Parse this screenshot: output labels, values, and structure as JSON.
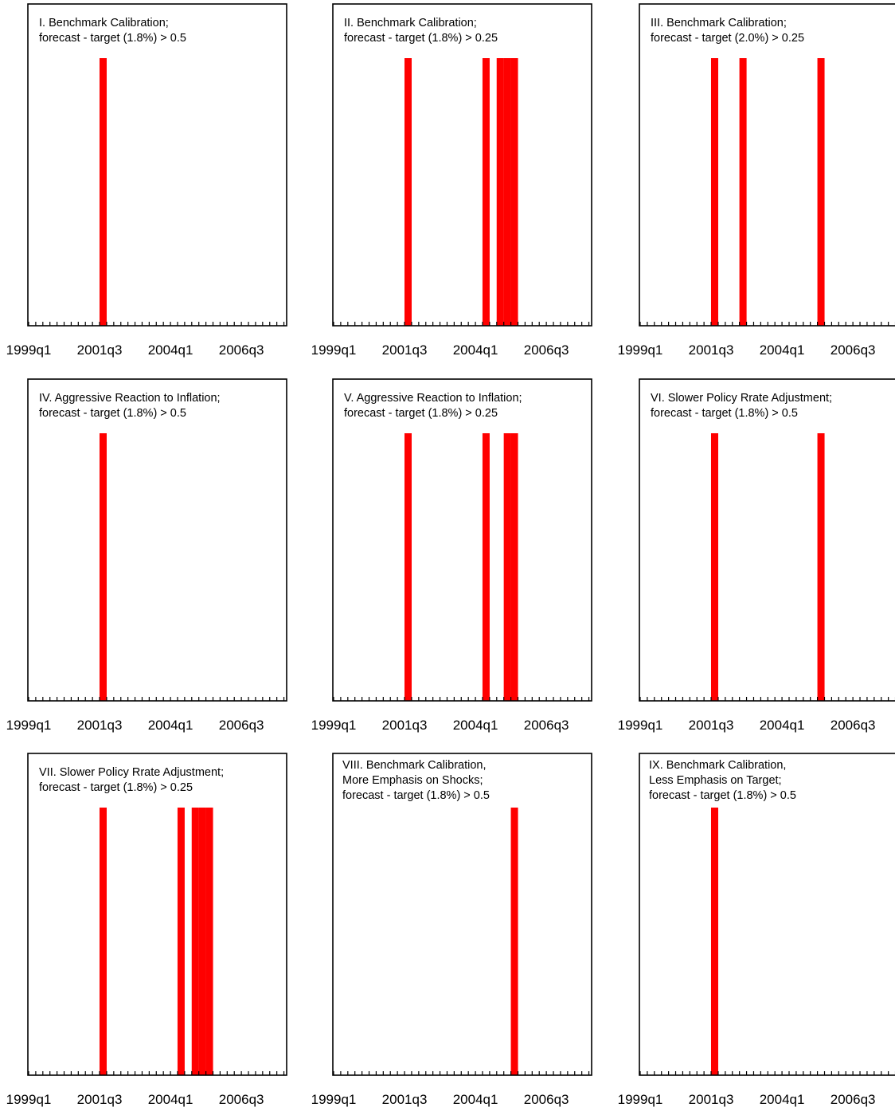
{
  "chart_data": [
    {
      "type": "bar",
      "title_lines": [
        "I. Benchmark Calibration;",
        "forecast - target (1.8%) > 0.5"
      ],
      "xlabel": "",
      "ylabel": "",
      "x_ticks": [
        "1999q1",
        "2001q3",
        "2004q1",
        "2006q3"
      ],
      "x_range": [
        "1999q1",
        "2007q4"
      ],
      "ylim": [
        0,
        1
      ],
      "grid": false,
      "color": "#ff0000",
      "bars": [
        {
          "quarter": "2001q3",
          "value": 1
        }
      ]
    },
    {
      "type": "bar",
      "title_lines": [
        "II. Benchmark Calibration;",
        "forecast - target (1.8%) > 0.25"
      ],
      "xlabel": "",
      "ylabel": "",
      "x_ticks": [
        "1999q1",
        "2001q3",
        "2004q1",
        "2006q3"
      ],
      "x_range": [
        "1999q1",
        "2007q4"
      ],
      "ylim": [
        0,
        1
      ],
      "grid": false,
      "color": "#ff0000",
      "bars": [
        {
          "quarter": "2001q3",
          "value": 1
        },
        {
          "quarter": "2004q2",
          "value": 1
        },
        {
          "quarter": "2004q4",
          "value": 1
        },
        {
          "quarter": "2005q1",
          "value": 1
        },
        {
          "quarter": "2005q2",
          "value": 1
        }
      ]
    },
    {
      "type": "bar",
      "title_lines": [
        "III. Benchmark Calibration;",
        "forecast - target (2.0%) > 0.25"
      ],
      "xlabel": "",
      "ylabel": "",
      "x_ticks": [
        "1999q1",
        "2001q3",
        "2004q1",
        "2006q3"
      ],
      "x_range": [
        "1999q1",
        "2007q4"
      ],
      "ylim": [
        0,
        1
      ],
      "grid": false,
      "color": "#ff0000",
      "bars": [
        {
          "quarter": "2001q3",
          "value": 1
        },
        {
          "quarter": "2002q3",
          "value": 1
        },
        {
          "quarter": "2005q2",
          "value": 1
        }
      ]
    },
    {
      "type": "bar",
      "title_lines": [
        "IV. Aggressive Reaction to Inflation;",
        "forecast - target (1.8%) > 0.5"
      ],
      "xlabel": "",
      "ylabel": "",
      "x_ticks": [
        "1999q1",
        "2001q3",
        "2004q1",
        "2006q3"
      ],
      "x_range": [
        "1999q1",
        "2007q4"
      ],
      "ylim": [
        0,
        1
      ],
      "grid": false,
      "color": "#ff0000",
      "bars": [
        {
          "quarter": "2001q3",
          "value": 1
        }
      ]
    },
    {
      "type": "bar",
      "title_lines": [
        "V. Aggressive Reaction to Inflation;",
        "forecast - target (1.8%) > 0.25"
      ],
      "xlabel": "",
      "ylabel": "",
      "x_ticks": [
        "1999q1",
        "2001q3",
        "2004q1",
        "2006q3"
      ],
      "x_range": [
        "1999q1",
        "2007q4"
      ],
      "ylim": [
        0,
        1
      ],
      "grid": false,
      "color": "#ff0000",
      "bars": [
        {
          "quarter": "2001q3",
          "value": 1
        },
        {
          "quarter": "2004q2",
          "value": 1
        },
        {
          "quarter": "2005q1",
          "value": 1
        },
        {
          "quarter": "2005q2",
          "value": 1
        }
      ]
    },
    {
      "type": "bar",
      "title_lines": [
        "VI. Slower Policy Rrate Adjustment;",
        "forecast - target (1.8%) > 0.5"
      ],
      "xlabel": "",
      "ylabel": "",
      "x_ticks": [
        "1999q1",
        "2001q3",
        "2004q1",
        "2006q3"
      ],
      "x_range": [
        "1999q1",
        "2007q4"
      ],
      "ylim": [
        0,
        1
      ],
      "grid": false,
      "color": "#ff0000",
      "bars": [
        {
          "quarter": "2001q3",
          "value": 1
        },
        {
          "quarter": "2005q2",
          "value": 1
        }
      ]
    },
    {
      "type": "bar",
      "title_lines": [
        "VII. Slower Policy Rrate Adjustment;",
        "forecast - target (1.8%) > 0.25"
      ],
      "xlabel": "",
      "ylabel": "",
      "x_ticks": [
        "1999q1",
        "2001q3",
        "2004q1",
        "2006q3"
      ],
      "x_range": [
        "1999q1",
        "2007q4"
      ],
      "ylim": [
        0,
        1
      ],
      "grid": false,
      "color": "#ff0000",
      "bars": [
        {
          "quarter": "2001q3",
          "value": 1
        },
        {
          "quarter": "2004q2",
          "value": 1
        },
        {
          "quarter": "2004q4",
          "value": 1
        },
        {
          "quarter": "2005q1",
          "value": 1
        },
        {
          "quarter": "2005q2",
          "value": 1
        }
      ]
    },
    {
      "type": "bar",
      "title_lines": [
        "VIII. Benchmark Calibration,",
        "More Emphasis on Shocks;",
        "forecast - target (1.8%) > 0.5"
      ],
      "xlabel": "",
      "ylabel": "",
      "x_ticks": [
        "1999q1",
        "2001q3",
        "2004q1",
        "2006q3"
      ],
      "x_range": [
        "1999q1",
        "2007q4"
      ],
      "ylim": [
        0,
        1
      ],
      "grid": false,
      "color": "#ff0000",
      "bars": [
        {
          "quarter": "2005q2",
          "value": 1
        }
      ]
    },
    {
      "type": "bar",
      "title_lines": [
        "IX. Benchmark Calibration,",
        "Less Emphasis on Target;",
        "forecast - target (1.8%) > 0.5"
      ],
      "xlabel": "",
      "ylabel": "",
      "x_ticks": [
        "1999q1",
        "2001q3",
        "2004q1",
        "2006q3"
      ],
      "x_range": [
        "1999q1",
        "2007q4"
      ],
      "ylim": [
        0,
        1
      ],
      "grid": false,
      "color": "#ff0000",
      "bars": [
        {
          "quarter": "2001q3",
          "value": 1
        }
      ]
    }
  ]
}
